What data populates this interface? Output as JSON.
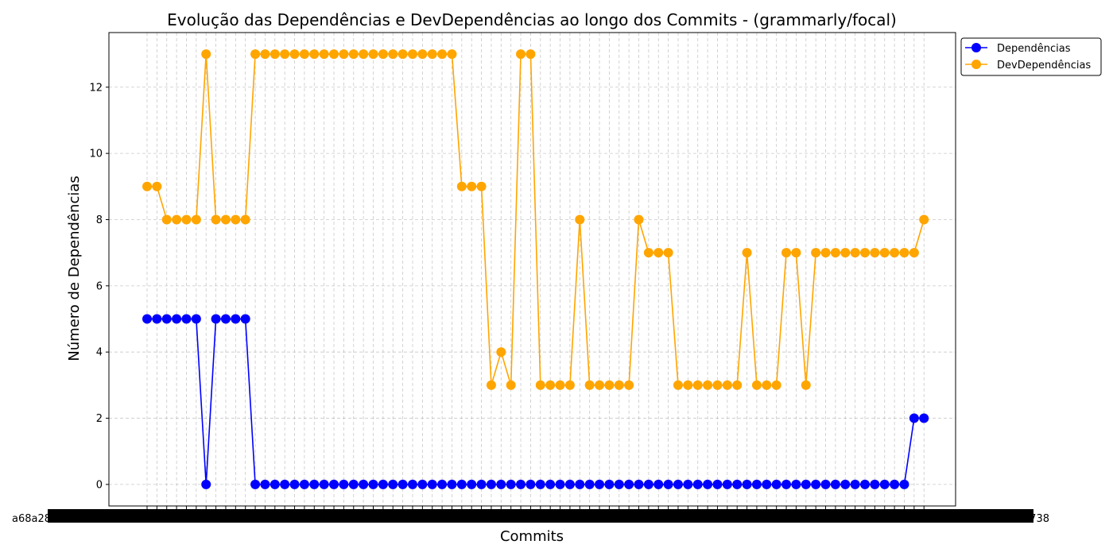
{
  "chart_data": {
    "type": "line",
    "title": "Evolução das Dependências e DevDependências ao longo dos Commits - (grammarly/focal)",
    "xlabel": "Commits",
    "ylabel": "Número de Dependências",
    "x_tick_labels_visible": {
      "first": "a68a2865f4",
      "last": "d5cb6c2738"
    },
    "point_count": 80,
    "ylim": [
      -0.65,
      13.65
    ],
    "yticks": [
      0,
      2,
      4,
      6,
      8,
      10,
      12
    ],
    "grid": true,
    "legend_position": "upper-right-outside",
    "series": [
      {
        "name": "Dependências",
        "color": "#0000ff",
        "values": [
          5,
          5,
          5,
          5,
          5,
          5,
          0,
          5,
          5,
          5,
          5,
          0,
          0,
          0,
          0,
          0,
          0,
          0,
          0,
          0,
          0,
          0,
          0,
          0,
          0,
          0,
          0,
          0,
          0,
          0,
          0,
          0,
          0,
          0,
          0,
          0,
          0,
          0,
          0,
          0,
          0,
          0,
          0,
          0,
          0,
          0,
          0,
          0,
          0,
          0,
          0,
          0,
          0,
          0,
          0,
          0,
          0,
          0,
          0,
          0,
          0,
          0,
          0,
          0,
          0,
          0,
          0,
          0,
          0,
          0,
          0,
          0,
          0,
          0,
          0,
          0,
          0,
          0,
          2,
          2
        ]
      },
      {
        "name": "DevDependências",
        "color": "#ffa500",
        "values": [
          9,
          9,
          8,
          8,
          8,
          8,
          13,
          8,
          8,
          8,
          8,
          13,
          13,
          13,
          13,
          13,
          13,
          13,
          13,
          13,
          13,
          13,
          13,
          13,
          13,
          13,
          13,
          13,
          13,
          13,
          13,
          13,
          9,
          9,
          9,
          3,
          4,
          3,
          13,
          13,
          3,
          3,
          3,
          3,
          8,
          3,
          3,
          3,
          3,
          3,
          8,
          7,
          7,
          7,
          3,
          3,
          3,
          3,
          3,
          3,
          3,
          7,
          3,
          3,
          3,
          7,
          7,
          3,
          7,
          7,
          7,
          7,
          7,
          7,
          7,
          7,
          7,
          7,
          7,
          8
        ]
      }
    ]
  }
}
